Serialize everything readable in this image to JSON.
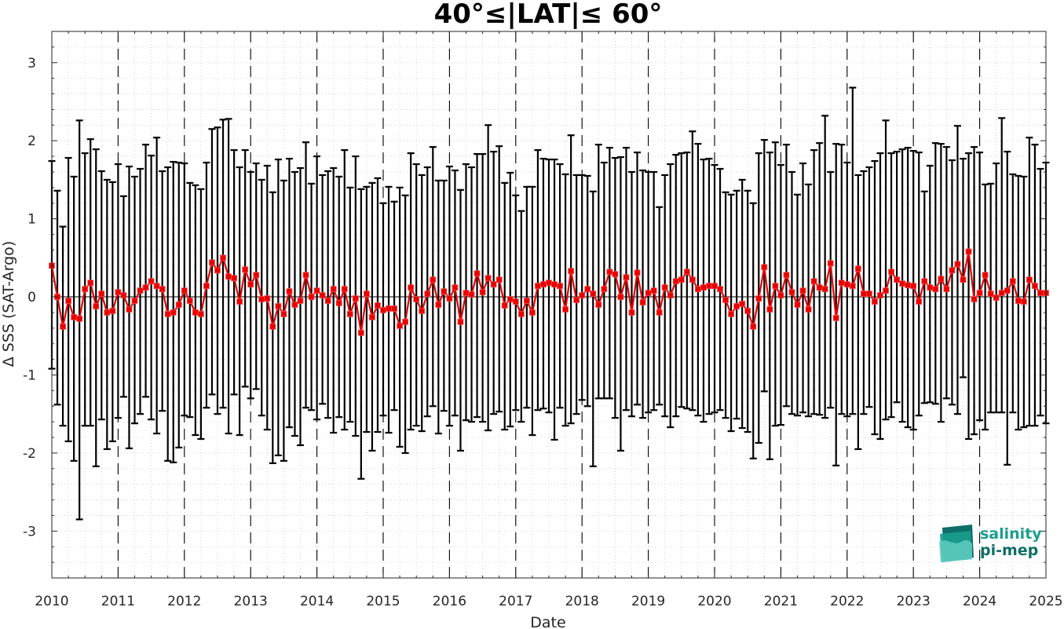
{
  "chart_data": {
    "type": "line",
    "title": "40°≤|LAT|≤ 60°",
    "xlabel": "Date",
    "ylabel": "Δ SSS (SAT-Argo)",
    "xlim": [
      2010,
      2025
    ],
    "ylim": [
      -3.6,
      3.4
    ],
    "x_ticks": [
      "2010",
      "2011",
      "2012",
      "2013",
      "2014",
      "2015",
      "2016",
      "2017",
      "2018",
      "2019",
      "2020",
      "2021",
      "2022",
      "2023",
      "2024",
      "2025"
    ],
    "y_ticks": [
      "-3",
      "-2",
      "-1",
      "0",
      "1",
      "2",
      "3"
    ],
    "grid": "dotted",
    "year_separators": "dashed",
    "colors": {
      "mean_line": "#e60000",
      "error_bars": "#000000",
      "logo_teal": "#1a9e8f"
    },
    "series": [
      {
        "start": "2010-01",
        "step": "month",
        "mean": [
          0.4,
          0.0,
          -0.38,
          -0.05,
          -0.26,
          -0.28,
          0.1,
          0.18,
          -0.12,
          0.04,
          -0.2,
          -0.18,
          0.06,
          0.02,
          -0.16,
          -0.05,
          0.08,
          0.12,
          0.2,
          0.14,
          0.1,
          -0.22,
          -0.2,
          -0.1,
          0.08,
          -0.05,
          -0.2,
          -0.22,
          0.14,
          0.44,
          0.34,
          0.5,
          0.26,
          0.24,
          -0.06,
          0.35,
          0.16,
          0.28,
          -0.03,
          -0.02,
          -0.38,
          -0.12,
          -0.22,
          0.07,
          -0.1,
          -0.05,
          0.28,
          0.0,
          0.08,
          0.02,
          -0.05,
          0.1,
          -0.08,
          0.1,
          -0.22,
          -0.02,
          -0.46,
          0.04,
          -0.26,
          -0.11,
          -0.17,
          -0.15,
          -0.15,
          -0.37,
          -0.32,
          0.12,
          -0.03,
          -0.18,
          0.04,
          0.22,
          -0.1,
          0.07,
          -0.02,
          0.12,
          -0.32,
          0.05,
          0.03,
          0.3,
          0.06,
          0.24,
          0.16,
          0.22,
          -0.11,
          -0.03,
          -0.06,
          -0.22,
          -0.05,
          -0.2,
          0.14,
          0.16,
          0.18,
          0.16,
          0.14,
          -0.16,
          0.33,
          -0.04,
          0.02,
          0.1,
          0.04,
          -0.1,
          0.1,
          0.32,
          0.29,
          0.0,
          0.25,
          -0.2,
          0.31,
          -0.07,
          0.05,
          0.08,
          -0.2,
          0.12,
          0.02,
          0.2,
          0.22,
          0.32,
          0.22,
          0.1,
          0.12,
          0.14,
          0.14,
          0.1,
          -0.04,
          -0.22,
          -0.12,
          -0.09,
          -0.18,
          -0.38,
          -0.02,
          0.38,
          -0.16,
          0.14,
          0.02,
          0.28,
          0.06,
          -0.1,
          0.08,
          -0.16,
          0.2,
          0.12,
          0.1,
          0.43,
          -0.27,
          0.18,
          0.16,
          0.14,
          0.36,
          0.04,
          0.04,
          -0.06,
          0.02,
          0.08,
          0.32,
          0.22,
          0.17,
          0.15,
          0.14,
          -0.06,
          0.2,
          0.12,
          0.1,
          0.23,
          0.1,
          0.34,
          0.42,
          0.22,
          0.58,
          -0.03,
          0.05,
          0.28,
          0.04,
          -0.01,
          0.05,
          0.08,
          0.2,
          -0.05,
          -0.06,
          0.22,
          0.14,
          0.05,
          0.05
        ],
        "upper": [
          1.74,
          1.36,
          0.9,
          1.78,
          1.54,
          2.26,
          1.84,
          2.02,
          1.89,
          1.61,
          1.5,
          1.47,
          1.7,
          1.29,
          1.67,
          1.54,
          1.64,
          1.95,
          1.81,
          2.04,
          1.61,
          1.66,
          1.73,
          1.72,
          1.71,
          1.46,
          1.43,
          1.38,
          1.72,
          2.15,
          2.17,
          2.27,
          2.28,
          1.88,
          1.66,
          1.88,
          1.6,
          1.71,
          1.5,
          1.68,
          1.34,
          1.76,
          1.49,
          1.77,
          1.6,
          1.65,
          1.98,
          1.45,
          1.8,
          1.56,
          1.61,
          1.65,
          1.54,
          1.88,
          1.4,
          1.8,
          1.38,
          1.41,
          1.46,
          1.52,
          1.2,
          1.41,
          1.22,
          1.4,
          1.3,
          1.84,
          1.7,
          1.56,
          1.66,
          1.92,
          1.49,
          1.49,
          1.67,
          1.62,
          1.37,
          1.7,
          1.66,
          1.83,
          1.83,
          2.2,
          1.86,
          1.93,
          1.46,
          1.59,
          1.3,
          1.1,
          1.41,
          1.41,
          1.88,
          1.77,
          1.76,
          1.76,
          1.7,
          1.57,
          2.07,
          1.56,
          1.56,
          1.55,
          1.35,
          1.95,
          1.72,
          1.91,
          1.78,
          1.79,
          1.91,
          1.6,
          1.85,
          1.62,
          1.6,
          1.6,
          1.15,
          1.56,
          1.7,
          1.82,
          1.84,
          1.85,
          2.12,
          1.96,
          1.76,
          1.77,
          1.69,
          1.64,
          1.34,
          1.31,
          1.36,
          1.5,
          1.36,
          1.2,
          1.84,
          2.01,
          1.85,
          1.98,
          1.69,
          1.95,
          1.6,
          1.31,
          1.71,
          1.44,
          1.88,
          1.97,
          2.32,
          1.6,
          1.96,
          1.95,
          1.72,
          2.68,
          1.56,
          1.61,
          1.66,
          1.74,
          1.84,
          2.26,
          1.84,
          1.86,
          1.89,
          1.91,
          1.87,
          1.85,
          1.35,
          1.68,
          1.97,
          1.96,
          1.92,
          1.75,
          2.19,
          1.77,
          1.84,
          1.92,
          1.85,
          1.44,
          1.45,
          1.71,
          2.29,
          1.86,
          1.57,
          1.55,
          1.54,
          2.04,
          1.95,
          1.64,
          1.72
        ],
        "lower": [
          -0.92,
          -1.38,
          -1.65,
          -1.85,
          -2.1,
          -2.85,
          -1.65,
          -1.65,
          -2.17,
          -1.57,
          -1.95,
          -1.85,
          -1.55,
          -1.28,
          -1.94,
          -1.62,
          -1.5,
          -1.28,
          -1.57,
          -1.75,
          -1.46,
          -2.1,
          -2.12,
          -1.93,
          -1.52,
          -1.54,
          -1.77,
          -1.82,
          -1.42,
          -1.25,
          -1.5,
          -1.42,
          -1.75,
          -1.25,
          -1.77,
          -1.15,
          -1.3,
          -1.18,
          -1.52,
          -1.7,
          -2.13,
          -2.03,
          -2.1,
          -1.67,
          -1.78,
          -1.9,
          -1.42,
          -1.45,
          -1.57,
          -1.37,
          -1.55,
          -1.74,
          -1.54,
          -1.7,
          -1.6,
          -1.78,
          -2.33,
          -1.73,
          -1.97,
          -1.73,
          -1.52,
          -1.74,
          -1.45,
          -1.92,
          -2.0,
          -1.7,
          -1.65,
          -1.72,
          -1.53,
          -1.4,
          -1.75,
          -1.46,
          -1.65,
          -1.52,
          -1.97,
          -1.58,
          -1.6,
          -1.54,
          -1.6,
          -1.71,
          -1.5,
          -1.47,
          -1.7,
          -1.66,
          -1.45,
          -1.6,
          -1.42,
          -1.77,
          -1.45,
          -1.43,
          -1.48,
          -1.83,
          -1.42,
          -1.65,
          -1.62,
          -1.5,
          -1.32,
          -1.4,
          -2.17,
          -1.3,
          -1.3,
          -1.3,
          -1.55,
          -1.97,
          -1.45,
          -1.53,
          -1.38,
          -1.55,
          -1.48,
          -1.45,
          -1.38,
          -1.53,
          -1.67,
          -1.53,
          -1.41,
          -1.43,
          -1.45,
          -1.52,
          -1.6,
          -1.5,
          -1.48,
          -1.45,
          -1.55,
          -1.72,
          -1.56,
          -1.68,
          -1.73,
          -2.07,
          -1.87,
          -1.21,
          -2.08,
          -1.65,
          -1.64,
          -1.4,
          -1.5,
          -1.52,
          -1.48,
          -1.53,
          -1.5,
          -1.51,
          -1.55,
          -1.42,
          -2.16,
          -1.5,
          -1.53,
          -1.5,
          -1.95,
          -1.5,
          -1.41,
          -1.76,
          -1.82,
          -1.57,
          -1.54,
          -1.35,
          -1.6,
          -1.67,
          -1.7,
          -1.52,
          -1.36,
          -1.35,
          -1.37,
          -1.6,
          -1.3,
          -1.38,
          -1.5,
          -1.03,
          -1.82,
          -1.76,
          -1.58,
          -1.7,
          -1.48,
          -1.48,
          -1.48,
          -2.15,
          -1.48,
          -1.7,
          -1.67,
          -1.65,
          -1.65,
          -1.52,
          -1.62
        ]
      }
    ]
  },
  "logo": {
    "line1": "salinity",
    "line2": "pi-mep",
    "icon": "salinity-wave-logo-icon"
  }
}
